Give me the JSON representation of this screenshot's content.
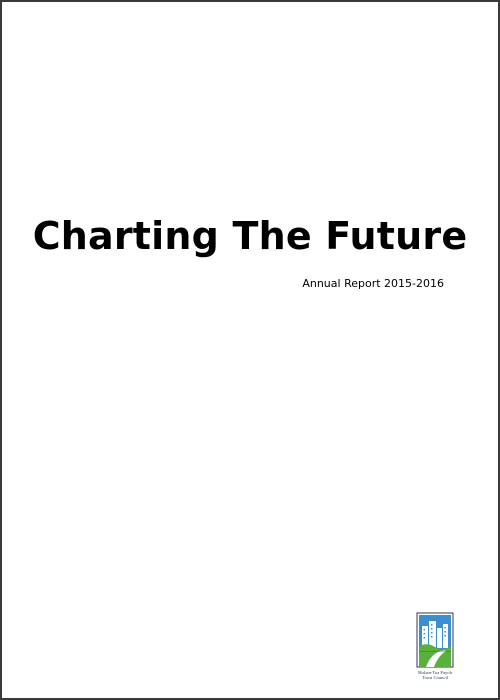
{
  "document": {
    "title": "Charting The Future",
    "subtitle": "Annual Report 2015-2016"
  },
  "logo": {
    "line1": "Bishan-Toa Payoh",
    "line2": "Town Council",
    "colors": {
      "sky": "#3a8fd0",
      "buildings": "#ffffff",
      "path": "#5ab03c",
      "trim": "#2d3a5c"
    }
  }
}
